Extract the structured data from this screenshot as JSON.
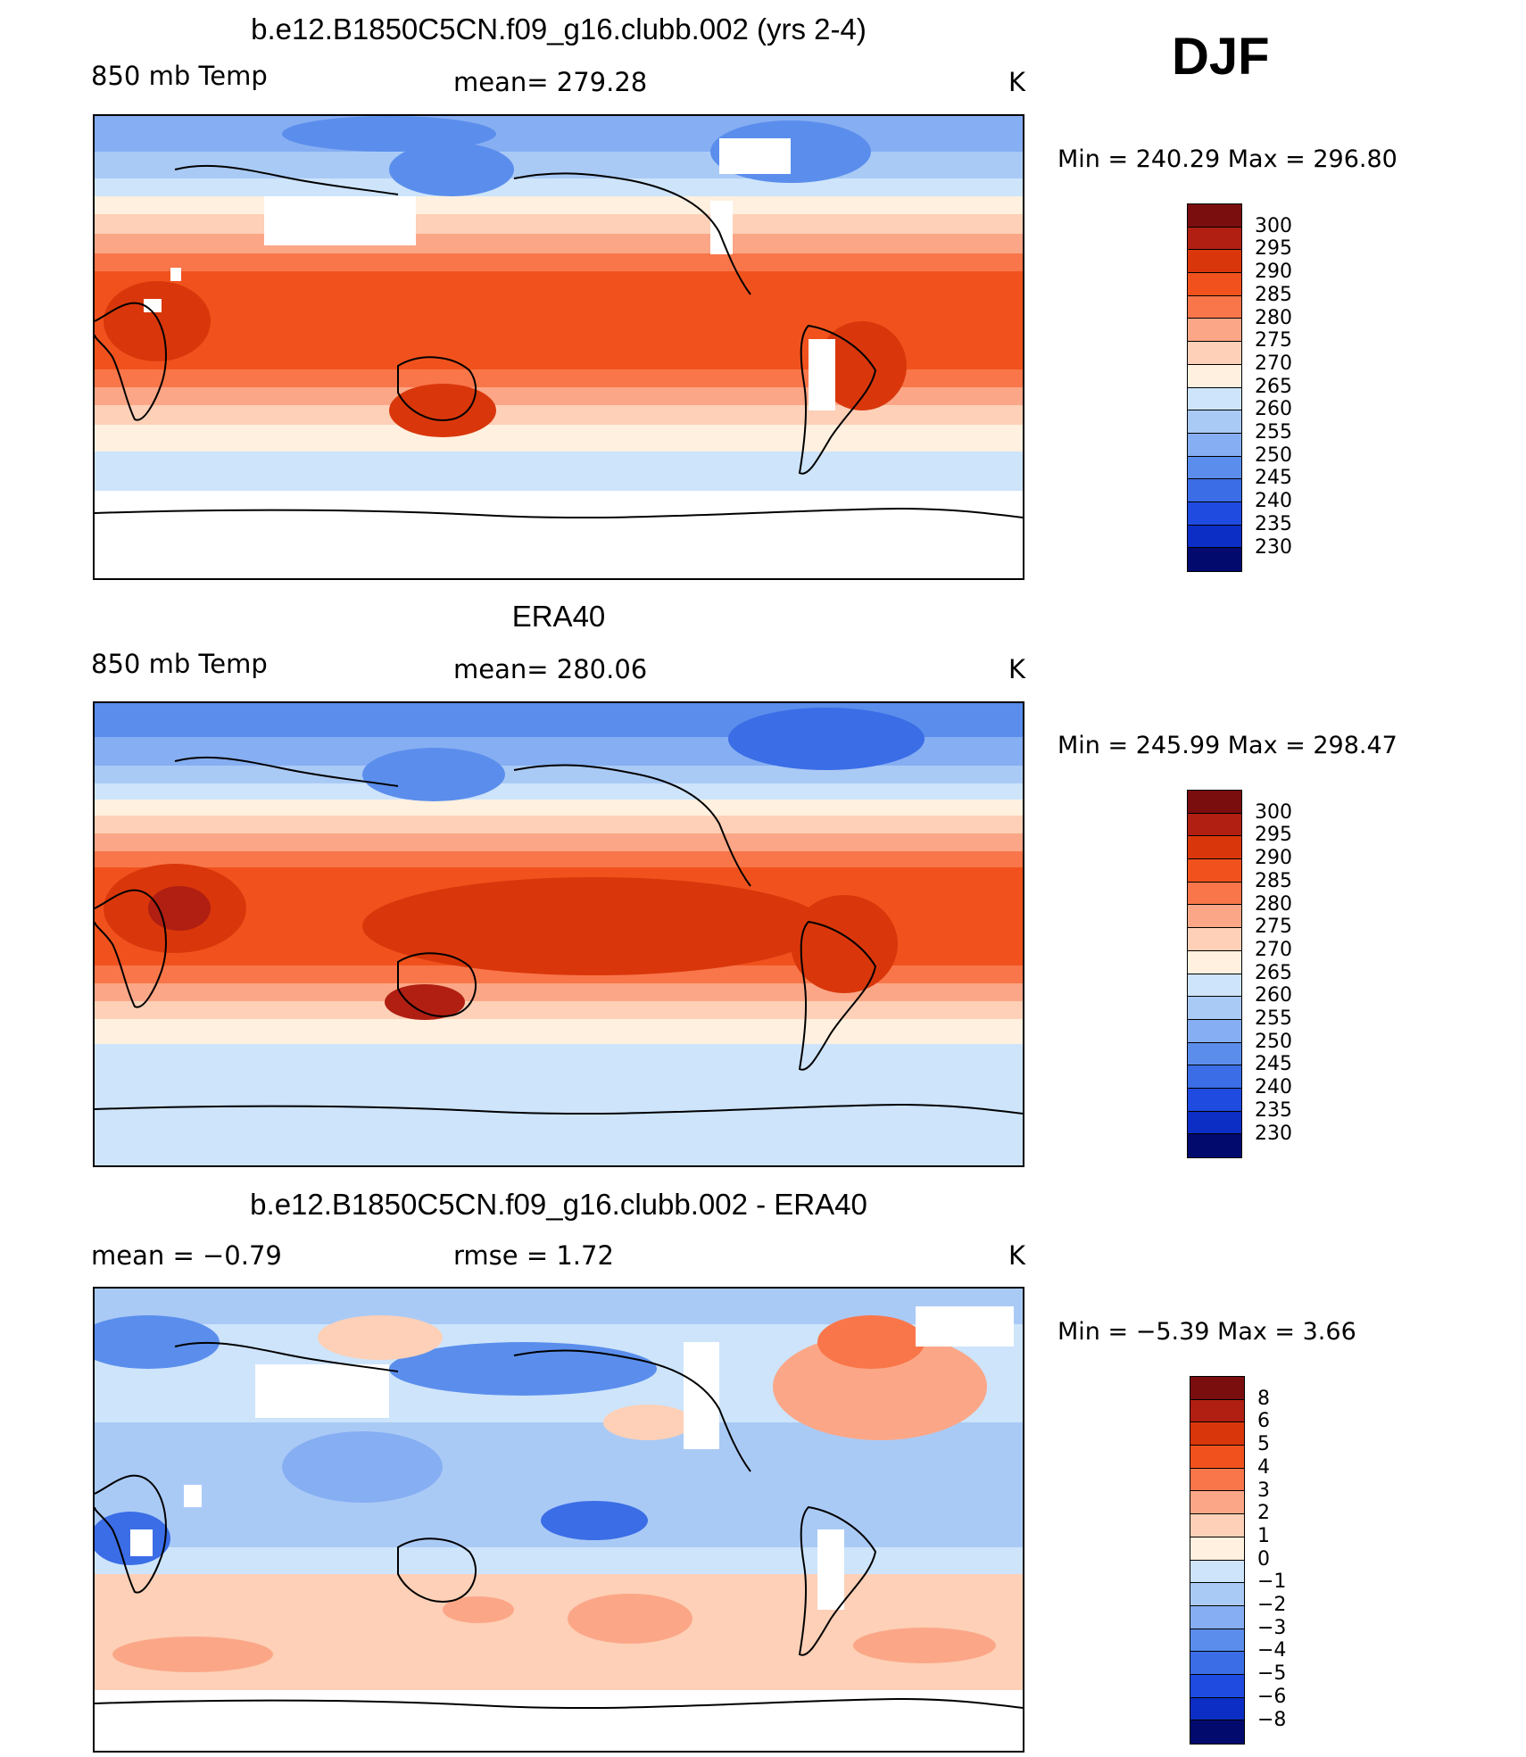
{
  "season": "DJF",
  "colors": {
    "warm": [
      "#7a0d0d",
      "#b01f12",
      "#d9370b",
      "#f1521d",
      "#f9764a",
      "#fba787",
      "#fdd0b7",
      "#fff0df"
    ],
    "cool": [
      "#cde4fb",
      "#aacaf6",
      "#86aef2",
      "#5b8eec",
      "#3b6de6",
      "#1f4be0",
      "#0c2ec4",
      "#04129a",
      "#020a6e"
    ],
    "land_mask": "#ffffff",
    "coast": "#000000"
  },
  "panels": [
    {
      "title": "b.e12.B1850C5CN.f09_g16.clubb.002 (yrs 2-4)",
      "left_label": "850 mb Temp",
      "center_label": "mean= 279.28",
      "units": "K",
      "minmax": "Min = 240.29 Max = 296.80",
      "colorbar_labels": [
        "300",
        "295",
        "290",
        "285",
        "280",
        "275",
        "270",
        "265",
        "260",
        "255",
        "250",
        "245",
        "240",
        "235",
        "230"
      ],
      "colorbar_colors": [
        "#7a0d0d",
        "#b01f12",
        "#d9370b",
        "#f1521d",
        "#f9764a",
        "#fba787",
        "#fdd0b7",
        "#fff0df",
        "#cde4fb",
        "#aacaf6",
        "#86aef2",
        "#5b8eec",
        "#3b6de6",
        "#1f4be0",
        "#0c2ec4",
        "#020a6e"
      ]
    },
    {
      "title": "ERA40",
      "left_label": "850 mb Temp",
      "center_label": "mean= 280.06",
      "units": "K",
      "minmax": "Min = 245.99 Max = 298.47",
      "colorbar_labels": [
        "300",
        "295",
        "290",
        "285",
        "280",
        "275",
        "270",
        "265",
        "260",
        "255",
        "250",
        "245",
        "240",
        "235",
        "230"
      ],
      "colorbar_colors": [
        "#7a0d0d",
        "#b01f12",
        "#d9370b",
        "#f1521d",
        "#f9764a",
        "#fba787",
        "#fdd0b7",
        "#fff0df",
        "#cde4fb",
        "#aacaf6",
        "#86aef2",
        "#5b8eec",
        "#3b6de6",
        "#1f4be0",
        "#0c2ec4",
        "#020a6e"
      ]
    },
    {
      "title": "b.e12.B1850C5CN.f09_g16.clubb.002 - ERA40",
      "left_label": "mean =   −0.79",
      "center_label": "rmse =    1.72",
      "units": "K",
      "minmax": "Min =   −5.39 Max =    3.66",
      "colorbar_labels": [
        "8",
        "6",
        "5",
        "4",
        "3",
        "2",
        "1",
        "0",
        "−1",
        "−2",
        "−3",
        "−4",
        "−5",
        "−6",
        "−8"
      ],
      "colorbar_colors": [
        "#7a0d0d",
        "#b01f12",
        "#d9370b",
        "#f1521d",
        "#f9764a",
        "#fba787",
        "#fdd0b7",
        "#fff0df",
        "#cde4fb",
        "#aacaf6",
        "#86aef2",
        "#5b8eec",
        "#3b6de6",
        "#1f4be0",
        "#0c2ec4",
        "#020a6e"
      ]
    }
  ]
}
